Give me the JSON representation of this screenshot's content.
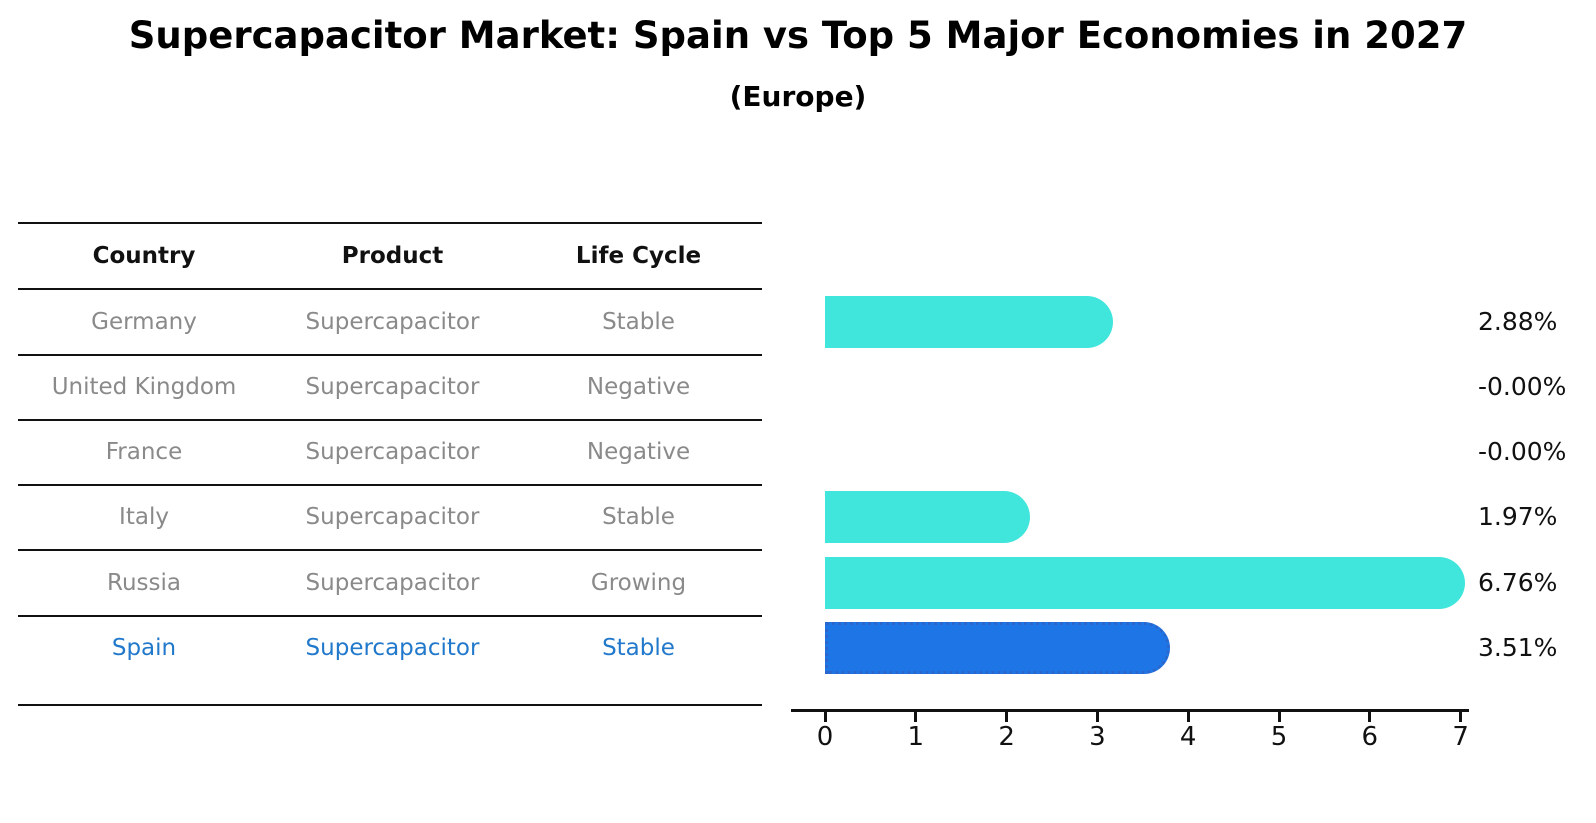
{
  "title": {
    "text": "Supercapacitor Market: Spain vs Top 5 Major Economies in 2027",
    "subtitle": "(Europe)"
  },
  "table": {
    "headers": [
      "Country",
      "Product",
      "Life Cycle"
    ],
    "rows": [
      {
        "country": "Germany",
        "product": "Supercapacitor",
        "life_cycle": "Stable"
      },
      {
        "country": "United Kingdom",
        "product": "Supercapacitor",
        "life_cycle": "Negative"
      },
      {
        "country": "France",
        "product": "Supercapacitor",
        "life_cycle": "Negative"
      },
      {
        "country": "Italy",
        "product": "Supercapacitor",
        "life_cycle": "Stable"
      },
      {
        "country": "Russia",
        "product": "Supercapacitor",
        "life_cycle": "Growing"
      },
      {
        "country": "Spain",
        "product": "Supercapacitor",
        "life_cycle": "Stable"
      }
    ],
    "highlight_row": "Spain"
  },
  "chart_data": {
    "type": "bar",
    "orientation": "horizontal",
    "title": "Supercapacitor Market: Spain vs Top 5 Major Economies in 2027",
    "subtitle": "(Europe)",
    "categories": [
      "Germany",
      "United Kingdom",
      "France",
      "Italy",
      "Russia",
      "Spain"
    ],
    "values": [
      2.88,
      -0.0,
      -0.0,
      1.97,
      6.76,
      3.51
    ],
    "value_labels": [
      "2.88%",
      "-0.00%",
      "-0.00%",
      "1.97%",
      "6.76%",
      "3.51%"
    ],
    "xlim": [
      0,
      7
    ],
    "x_ticks": [
      0,
      1,
      2,
      3,
      4,
      5,
      6,
      7
    ],
    "grid": false,
    "legend": false,
    "highlight_index": 5,
    "bar_color": "#40e5dc",
    "highlight_bar_color": "#1e76e6"
  },
  "colors": {
    "bar_cyan": "#40e5dc",
    "bar_blue": "#1e76e6",
    "spain_bar_border": "#2b66cc",
    "highlight_text": "#2279cb",
    "row_text": "#8a8a8a",
    "header_text": "#111111",
    "axis": "#111111",
    "background": "#ffffff"
  }
}
